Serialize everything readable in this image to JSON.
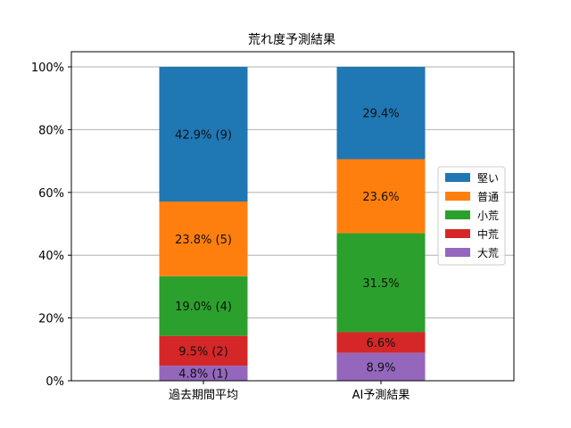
{
  "chart_data": {
    "type": "bar",
    "stacked": true,
    "title": "荒れ度予測結果",
    "xlabel": "",
    "ylabel": "",
    "ylim": [
      0,
      100
    ],
    "yticks": [
      "0%",
      "20%",
      "40%",
      "60%",
      "80%",
      "100%"
    ],
    "yticks_values": [
      0,
      20,
      40,
      60,
      80,
      100
    ],
    "grid": "y",
    "legend_position": "right",
    "categories": [
      "過去期間平均",
      "AI予測結果"
    ],
    "series": [
      {
        "name": "大荒",
        "color": "#9467bd",
        "values": [
          4.8,
          8.9
        ],
        "labels": [
          "4.8% (1)",
          "8.9%"
        ]
      },
      {
        "name": "中荒",
        "color": "#d62728",
        "values": [
          9.5,
          6.6
        ],
        "labels": [
          "9.5% (2)",
          "6.6%"
        ]
      },
      {
        "name": "小荒",
        "color": "#2ca02c",
        "values": [
          19.0,
          31.5
        ],
        "labels": [
          "19.0% (4)",
          "31.5%"
        ]
      },
      {
        "name": "普通",
        "color": "#ff7f0e",
        "values": [
          23.8,
          23.6
        ],
        "labels": [
          "23.8% (5)",
          "23.6%"
        ]
      },
      {
        "name": "堅い",
        "color": "#1f77b4",
        "values": [
          42.9,
          29.4
        ],
        "labels": [
          "42.9% (9)",
          "29.4%"
        ]
      }
    ],
    "legend_order": [
      "堅い",
      "普通",
      "小荒",
      "中荒",
      "大荒"
    ]
  }
}
